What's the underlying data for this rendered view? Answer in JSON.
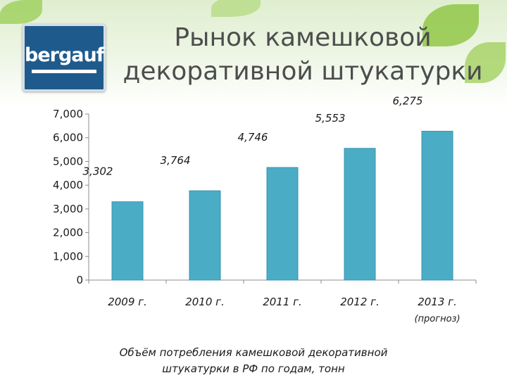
{
  "logo": {
    "text": "bergauf"
  },
  "title_line1": "Рынок камешковой",
  "title_line2": "декоративной штукатурки",
  "caption_line1": "Объём потребления камешковой декоративной",
  "caption_line2": "штукатурки в РФ по годам, тонн",
  "colors": {
    "bar": "#4bacc6",
    "bar_edge": "#3a95ad",
    "axis": "#8c8c8c",
    "title": "#4d4d4d"
  },
  "chart_data": {
    "type": "bar",
    "categories": [
      "2009 г.",
      "2010 г.",
      "2011 г.",
      "2012 г.",
      "2013 г."
    ],
    "category_notes": [
      "",
      "",
      "",
      "",
      "(прогноз)"
    ],
    "values": [
      3302,
      3764,
      4746,
      5553,
      6275
    ],
    "value_labels": [
      "3,302",
      "3,764",
      "4,746",
      "5,553",
      "6,275"
    ],
    "yticks": [
      "0",
      "1,000",
      "2,000",
      "3,000",
      "4,000",
      "5,000",
      "6,000",
      "7,000"
    ],
    "ylim": [
      0,
      7000
    ],
    "grid": false,
    "legend": "none"
  }
}
